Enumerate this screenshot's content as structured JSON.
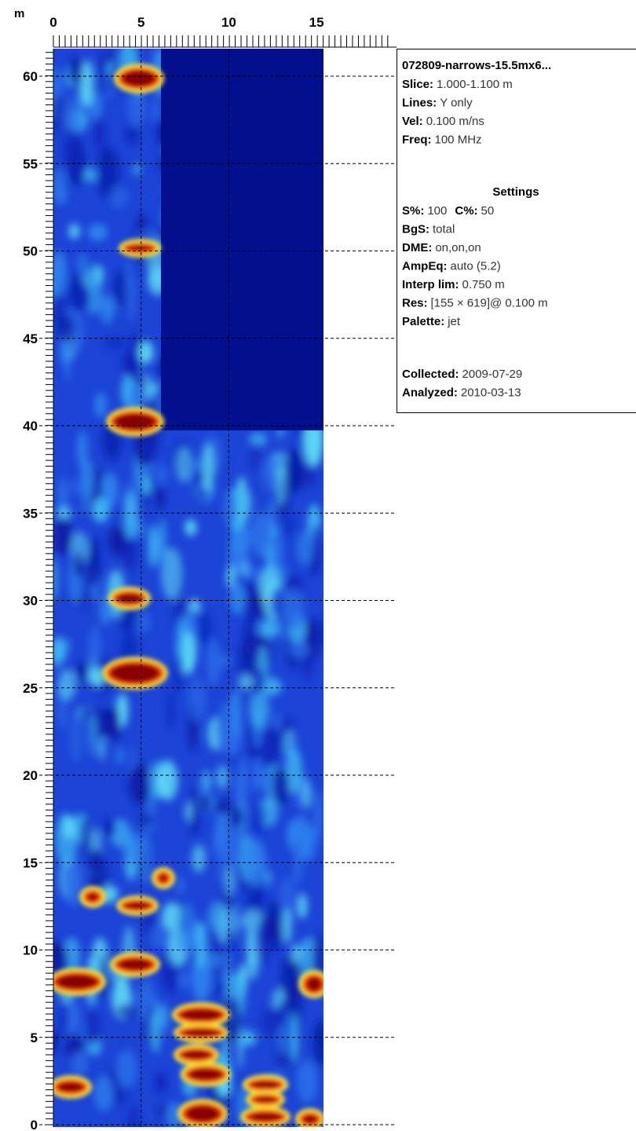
{
  "axis_unit": "m",
  "x_ticks": [
    "0",
    "5",
    "10",
    "15"
  ],
  "y_ticks": [
    "60",
    "55",
    "50",
    "45",
    "40",
    "35",
    "30",
    "25",
    "20",
    "15",
    "10",
    "5",
    "0"
  ],
  "info": {
    "title": "072809-narrows-15.5mx6...",
    "acquisition": [
      [
        {
          "label": "Slice:",
          "value": "1.000-1.100 m"
        }
      ],
      [
        {
          "label": "Lines:",
          "value": "Y only"
        }
      ],
      [
        {
          "label": "Vel:",
          "value": "0.100 m/ns"
        }
      ],
      [
        {
          "label": "Freq:",
          "value": "100 MHz"
        }
      ]
    ],
    "settings_title": "Settings",
    "settings": [
      [
        {
          "label": "S%:",
          "value": "100"
        },
        {
          "label": "C%:",
          "value": "50"
        }
      ],
      [
        {
          "label": "BgS:",
          "value": "total"
        }
      ],
      [
        {
          "label": "DME:",
          "value": "on,on,on"
        }
      ],
      [
        {
          "label": "AmpEq:",
          "value": "auto (5.2)"
        }
      ],
      [
        {
          "label": "Interp lim:",
          "value": "0.750 m"
        }
      ],
      [
        {
          "label": "Res:",
          "value": "[155 × 619]@ 0.100 m"
        }
      ],
      [
        {
          "label": "Palette:",
          "value": "jet"
        }
      ]
    ],
    "dates": [
      [
        {
          "label": "Collected:",
          "value": "2009-07-29"
        }
      ],
      [
        {
          "label": "Analyzed:",
          "value": "2010-03-13"
        }
      ]
    ]
  }
}
